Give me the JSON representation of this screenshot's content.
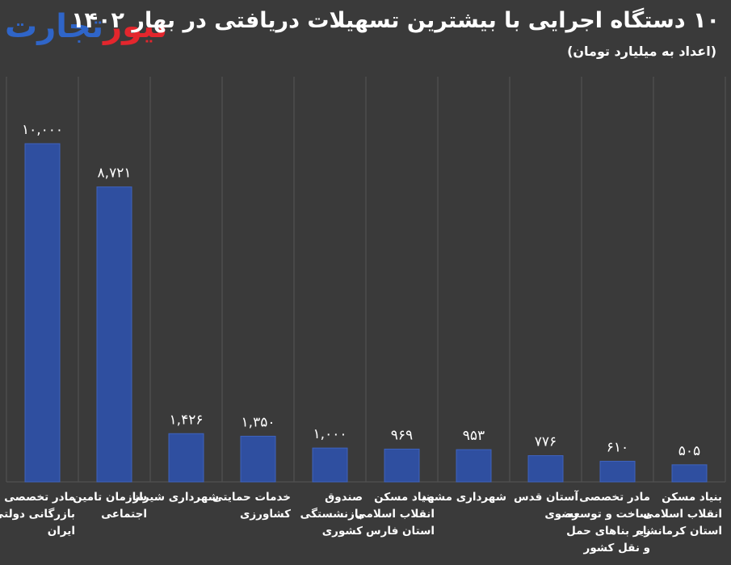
{
  "logo": {
    "part_a": "تجارت",
    "part_b": "نیوز"
  },
  "colors": {
    "background": "#3a3a3a",
    "bar": "#2f4fa0",
    "bar_edge": "#3f63bd",
    "grid": "#555555",
    "text": "#ffffff",
    "logo_blue": "#2f65c8",
    "logo_red": "#e3262d"
  },
  "chart_data": {
    "type": "bar",
    "title": "۱۰ دستگاه اجرایی با بیشترین تسهیلات دریافتی در بهار ۱۴۰۲",
    "subtitle": "(اعداد به میلیارد تومان)",
    "xlabel": "",
    "ylabel": "",
    "ylim": [
      0,
      10000
    ],
    "grid": "vertical",
    "categories": [
      [
        "مادر تخصصی",
        "بازرگانی دولتی",
        "ایران"
      ],
      [
        "سازمان تامین",
        "اجتماعی"
      ],
      [
        "شهرداری شیراز"
      ],
      [
        "خدمات حمایتی",
        "کشاورزی"
      ],
      [
        "صندوق",
        "بازنشستگی",
        "کشوری"
      ],
      [
        "بنیاد مسکن",
        "انقلاب اسلامی",
        "استان فارس"
      ],
      [
        "شهرداری مشهد"
      ],
      [
        "آستان قدس",
        "رضوی"
      ],
      [
        "مادر تخصصی",
        "ساخت و توسعه",
        "زیر بناهای حمل",
        "و نقل کشور"
      ],
      [
        "بنیاد مسکن",
        "انقلاب اسلامی",
        "استان کرمانشاه"
      ]
    ],
    "values": [
      10000,
      8721,
      1426,
      1350,
      1000,
      969,
      953,
      776,
      610,
      505
    ],
    "value_labels": [
      "۱۰,۰۰۰",
      "۸,۷۲۱",
      "۱,۴۲۶",
      "۱,۳۵۰",
      "۱,۰۰۰",
      "۹۶۹",
      "۹۵۳",
      "۷۷۶",
      "۶۱۰",
      "۵۰۵"
    ]
  }
}
